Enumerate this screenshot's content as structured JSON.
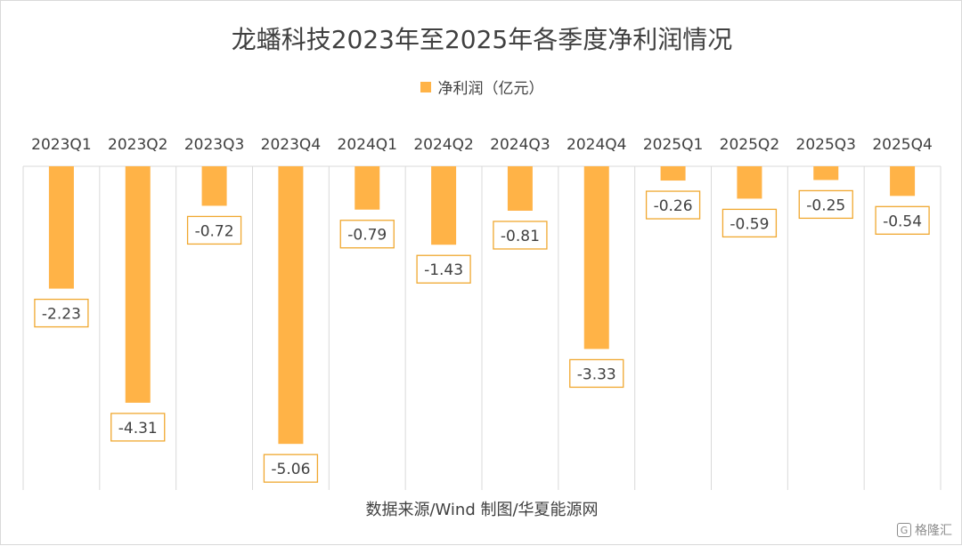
{
  "chart_data": {
    "type": "bar",
    "title": "龙蟠科技2023年至2025年各季度净利润情况",
    "categories": [
      "2023Q1",
      "2023Q2",
      "2023Q3",
      "2023Q4",
      "2024Q1",
      "2024Q2",
      "2024Q3",
      "2024Q4",
      "2025Q1",
      "2025Q2",
      "2025Q3",
      "2025Q4"
    ],
    "series": [
      {
        "name": "净利润（亿元）",
        "values": [
          -2.23,
          -4.31,
          -0.72,
          -5.06,
          -0.79,
          -1.43,
          -0.81,
          -3.33,
          -0.26,
          -0.59,
          -0.25,
          -0.54
        ],
        "color": "#FFB347"
      }
    ],
    "data_labels": [
      "-2.23",
      "-4.31",
      "-0.72",
      "-5.06",
      "-0.79",
      "-1.43",
      "-0.81",
      "-3.33",
      "-0.26",
      "-0.59",
      "-0.25",
      "-0.54"
    ],
    "ylim": [
      -5.9,
      0
    ],
    "legend_position": "top-center",
    "grid": "vertical category separators",
    "xaxis_position": "top"
  },
  "source_note": "数据来源/Wind  制图/华夏能源网",
  "watermark": {
    "icon": "G",
    "text": "格隆汇"
  },
  "colors": {
    "bar": "#FFB347",
    "label_border": "#F0A830",
    "grid": "#d9d9d9",
    "text": "#404040"
  }
}
